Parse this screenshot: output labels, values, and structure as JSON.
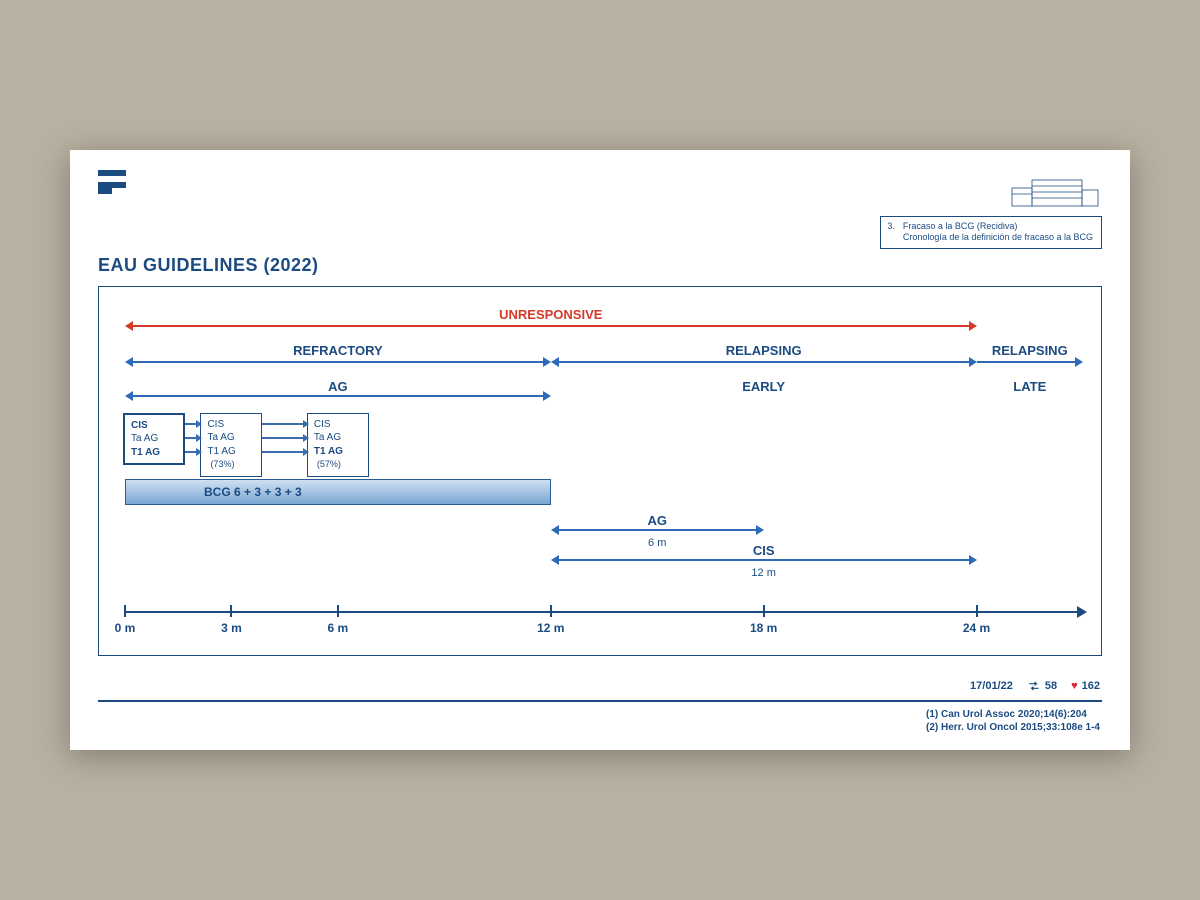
{
  "title": "EAU GUIDELINES (2022)",
  "info_box": {
    "number": "3.",
    "line1": "Fracaso a la BCG (Recidiva)",
    "line2": "Cronología de la definición de fracaso a la BCG"
  },
  "colors": {
    "primary": "#1b4b82",
    "arrow_blue": "#2e6ab5",
    "unresponsive": "#d43a2a",
    "bar_top": "#cfe0f2",
    "bar_bot": "#7aa5d2"
  },
  "timeline": {
    "start": 0,
    "end": 27,
    "ticks": [
      {
        "m": 0,
        "label": "0 m"
      },
      {
        "m": 3,
        "label": "3 m"
      },
      {
        "m": 6,
        "label": "6 m"
      },
      {
        "m": 12,
        "label": "12 m"
      },
      {
        "m": 18,
        "label": "18 m"
      },
      {
        "m": 24,
        "label": "24 m"
      }
    ]
  },
  "spans": {
    "unresponsive": {
      "label": "UNRESPONSIVE",
      "from": 0,
      "to": 24,
      "color": "#d43a2a"
    },
    "refractory": {
      "label": "REFRACTORY",
      "from": 0,
      "to": 12,
      "color": "#2e6ab5"
    },
    "relapsing_early": {
      "label": "RELAPSING",
      "sublabel": "EARLY",
      "from": 12,
      "to": 24,
      "color": "#2e6ab5"
    },
    "relapsing_late": {
      "label": "RELAPSING",
      "sublabel": "LATE",
      "from": 24,
      "to": 27,
      "color": "#2e6ab5",
      "open_right": true
    },
    "ag_top": {
      "label": "AG",
      "from": 0,
      "to": 12,
      "color": "#2e6ab5"
    }
  },
  "stage_boxes": [
    {
      "id": "box0m",
      "m": 0,
      "lines": [
        {
          "t": "CIS",
          "b": true
        },
        {
          "t": "Ta AG"
        },
        {
          "t": "T1 AG",
          "b": true
        }
      ],
      "bold_border": true
    },
    {
      "id": "box3m",
      "m": 3,
      "lines": [
        {
          "t": "CIS"
        },
        {
          "t": "Ta AG"
        },
        {
          "t": "T1 AG"
        },
        {
          "t": "(73%)",
          "small": true
        }
      ]
    },
    {
      "id": "box6m",
      "m": 6,
      "lines": [
        {
          "t": "CIS"
        },
        {
          "t": "Ta AG"
        },
        {
          "t": "T1 AG",
          "b": true
        },
        {
          "t": "(57%)",
          "small": true
        }
      ]
    }
  ],
  "bcg_bar": {
    "label": "BCG  6 + 3 + 3 + 3",
    "from": 0,
    "to": 12
  },
  "lower_spans": {
    "ag_6m": {
      "top": "AG",
      "bottom": "6 m",
      "from": 12,
      "to": 18
    },
    "cis_12m": {
      "top": "CIS",
      "bottom": "12 m",
      "from": 12,
      "to": 24
    }
  },
  "footer": {
    "date": "17/01/22",
    "retweets": "58",
    "likes": "162",
    "refs": [
      "(1) Can Urol Assoc 2020;14(6):204",
      "(2) Herr. Urol Oncol 2015;33:108e 1-4"
    ]
  }
}
